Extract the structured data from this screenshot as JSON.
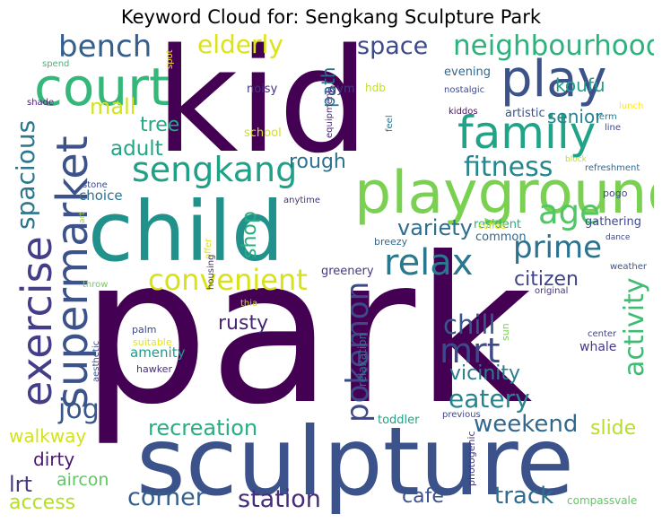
{
  "title": "Keyword Cloud for: Sengkang Sculpture Park",
  "words": [
    {
      "text": "park",
      "color": "#440154"
    },
    {
      "text": "kid",
      "color": "#440154"
    },
    {
      "text": "sculpture",
      "color": "#3b528b"
    },
    {
      "text": "child",
      "color": "#21918c"
    },
    {
      "text": "playground",
      "color": "#7ad151"
    },
    {
      "text": "court",
      "color": "#35b779"
    },
    {
      "text": "play",
      "color": "#3b528b"
    },
    {
      "text": "family",
      "color": "#20a386"
    },
    {
      "text": "supermarket",
      "color": "#3b528b"
    },
    {
      "text": "exercise",
      "color": "#433e85"
    },
    {
      "text": "sengkang",
      "color": "#1fa187"
    },
    {
      "text": "relax",
      "color": "#2a788e"
    },
    {
      "text": "neighbourhood",
      "color": "#2db27d"
    },
    {
      "text": "age",
      "color": "#52c569"
    },
    {
      "text": "mrt",
      "color": "#3e4989"
    },
    {
      "text": "pokemon",
      "color": "#3e4989"
    },
    {
      "text": "bench",
      "color": "#355f8d"
    },
    {
      "text": "prime",
      "color": "#2c728e"
    },
    {
      "text": "convenient",
      "color": "#d8e219"
    },
    {
      "text": "fitness",
      "color": "#24868e"
    },
    {
      "text": "activity",
      "color": "#3fbc73"
    },
    {
      "text": "spacious",
      "color": "#2a788e"
    },
    {
      "text": "elderly",
      "color": "#dde318"
    },
    {
      "text": "space",
      "color": "#3e4989"
    },
    {
      "text": "variety",
      "color": "#2e6e8e"
    },
    {
      "text": "chill",
      "color": "#39568c"
    },
    {
      "text": "eatery",
      "color": "#25848e"
    },
    {
      "text": "jog",
      "color": "#39568c"
    },
    {
      "text": "weekend",
      "color": "#31688e"
    },
    {
      "text": "recreation",
      "color": "#29af7f"
    },
    {
      "text": "corner",
      "color": "#355f8d"
    },
    {
      "text": "station",
      "color": "#472c7a"
    },
    {
      "text": "track",
      "color": "#2f6c8e"
    },
    {
      "text": "mall",
      "color": "#d2e21b"
    },
    {
      "text": "adult",
      "color": "#22a785"
    },
    {
      "text": "tree",
      "color": "#22a884"
    },
    {
      "text": "rough",
      "color": "#2c728e"
    },
    {
      "text": "shop",
      "color": "#29af7f"
    },
    {
      "text": "citizen",
      "color": "#414487"
    },
    {
      "text": "rusty",
      "color": "#482475"
    },
    {
      "text": "vicinity",
      "color": "#277f8e"
    },
    {
      "text": "koufu",
      "color": "#1f9e89"
    },
    {
      "text": "senior",
      "color": "#26828e"
    },
    {
      "text": "path",
      "color": "#2d708e"
    },
    {
      "text": "walkway",
      "color": "#d2e21b"
    },
    {
      "text": "dirty",
      "color": "#48186a"
    },
    {
      "text": "lrt",
      "color": "#443983"
    },
    {
      "text": "aircon",
      "color": "#5ec962"
    },
    {
      "text": "access",
      "color": "#b5de2b"
    },
    {
      "text": "slide",
      "color": "#b8de29"
    },
    {
      "text": "cafe",
      "color": "#3b528b"
    },
    {
      "text": "choice",
      "color": "#2c728e"
    },
    {
      "text": "amenity",
      "color": "#1f9a8a"
    },
    {
      "text": "evening",
      "color": "#31688e"
    },
    {
      "text": "school",
      "color": "#d0e11c"
    },
    {
      "text": "noisy",
      "color": "#46327e"
    },
    {
      "text": "gym",
      "color": "#443983"
    },
    {
      "text": "hdb",
      "color": "#c2df23"
    },
    {
      "text": "artistic",
      "color": "#3b528b"
    },
    {
      "text": "greenery",
      "color": "#453882"
    },
    {
      "text": "common",
      "color": "#31688e"
    },
    {
      "text": "resident",
      "color": "#2ab07f"
    },
    {
      "text": "gathering",
      "color": "#3e4989"
    },
    {
      "text": "relaxation",
      "color": "#2a788e"
    },
    {
      "text": "whale",
      "color": "#443983"
    },
    {
      "text": "toddler",
      "color": "#20a386"
    },
    {
      "text": "photogenic",
      "color": "#443983"
    },
    {
      "text": "compassvale",
      "color": "#5ec962"
    },
    {
      "text": "hawker",
      "color": "#472d7b"
    },
    {
      "text": "suitable",
      "color": "#e5e419"
    },
    {
      "text": "aesthetic",
      "color": "#3b528b"
    },
    {
      "text": "palm",
      "color": "#3e4989"
    },
    {
      "text": "previous",
      "color": "#404688"
    },
    {
      "text": "center",
      "color": "#414487"
    },
    {
      "text": "sun",
      "color": "#7ad151"
    },
    {
      "text": "thia",
      "color": "#c2df23"
    },
    {
      "text": "original",
      "color": "#46327e"
    },
    {
      "text": "weather",
      "color": "#3b528b"
    },
    {
      "text": "dance",
      "color": "#3e4989"
    },
    {
      "text": "throw",
      "color": "#6ece58"
    },
    {
      "text": "offer",
      "color": "#dde318"
    },
    {
      "text": "housing",
      "color": "#46307e"
    },
    {
      "text": "breezy",
      "color": "#31688e"
    },
    {
      "text": "coffee",
      "color": "#e5e419"
    },
    {
      "text": "anytime",
      "color": "#46327e"
    },
    {
      "text": "stone",
      "color": "#3e4989"
    },
    {
      "text": "art",
      "color": "#a2da37"
    },
    {
      "text": "pogo",
      "color": "#3e4989"
    },
    {
      "text": "refreshment",
      "color": "#31688e"
    },
    {
      "text": "line",
      "color": "#3e4989"
    },
    {
      "text": "block",
      "color": "#bddf26"
    },
    {
      "text": "term",
      "color": "#2a788e"
    },
    {
      "text": "equipment",
      "color": "#482677"
    },
    {
      "text": "kiddos",
      "color": "#471063"
    },
    {
      "text": "feel",
      "color": "#2a788e"
    },
    {
      "text": "nostalgic",
      "color": "#3e4989"
    },
    {
      "text": "spot",
      "color": "#fde725"
    },
    {
      "text": "lunch",
      "color": "#fde725"
    },
    {
      "text": "spend",
      "color": "#3bbb75"
    },
    {
      "text": "shade",
      "color": "#482173"
    }
  ]
}
